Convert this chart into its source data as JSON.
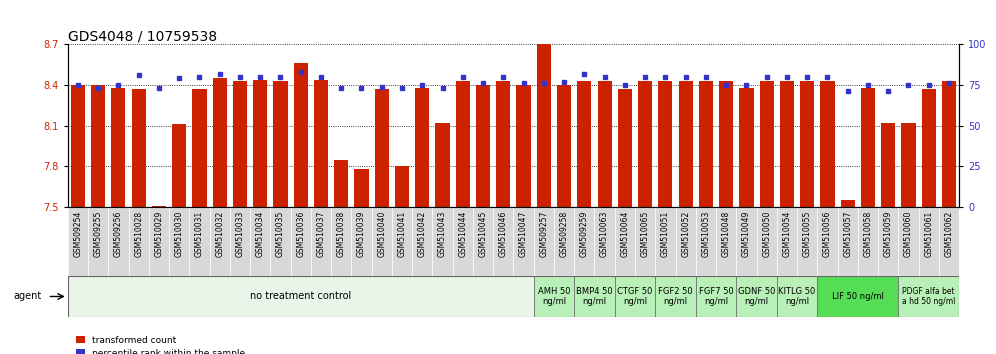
{
  "title": "GDS4048 / 10759538",
  "samples": [
    "GSM509254",
    "GSM509255",
    "GSM509256",
    "GSM510028",
    "GSM510029",
    "GSM510030",
    "GSM510031",
    "GSM510032",
    "GSM510033",
    "GSM510034",
    "GSM510035",
    "GSM510036",
    "GSM510037",
    "GSM510038",
    "GSM510039",
    "GSM510040",
    "GSM510041",
    "GSM510042",
    "GSM510043",
    "GSM510044",
    "GSM510045",
    "GSM510046",
    "GSM510047",
    "GSM509257",
    "GSM509258",
    "GSM509259",
    "GSM510063",
    "GSM510064",
    "GSM510065",
    "GSM510051",
    "GSM510052",
    "GSM510053",
    "GSM510048",
    "GSM510049",
    "GSM510050",
    "GSM510054",
    "GSM510055",
    "GSM510056",
    "GSM510057",
    "GSM510058",
    "GSM510059",
    "GSM510060",
    "GSM510061",
    "GSM510062"
  ],
  "bar_values": [
    8.4,
    8.4,
    8.38,
    8.37,
    7.51,
    8.11,
    8.37,
    8.45,
    8.43,
    8.44,
    8.43,
    8.56,
    8.44,
    7.85,
    7.78,
    8.37,
    7.8,
    8.38,
    8.12,
    8.43,
    8.4,
    8.43,
    8.4,
    8.7,
    8.4,
    8.43,
    8.43,
    8.37,
    8.43,
    8.43,
    8.43,
    8.43,
    8.43,
    8.38,
    8.43,
    8.43,
    8.43,
    8.43,
    7.55,
    8.38,
    8.12,
    8.12,
    8.37,
    8.43
  ],
  "percentile_values": [
    75,
    73,
    75,
    81,
    73,
    79,
    80,
    82,
    80,
    80,
    80,
    83,
    80,
    73,
    73,
    74,
    73,
    75,
    73,
    80,
    76,
    80,
    76,
    76,
    77,
    82,
    80,
    75,
    80,
    80,
    80,
    80,
    75,
    75,
    80,
    80,
    80,
    80,
    71,
    75,
    71,
    75,
    75,
    76
  ],
  "ylim_left": [
    7.5,
    8.7
  ],
  "ylim_right": [
    0,
    100
  ],
  "yticks_left": [
    7.5,
    7.8,
    8.1,
    8.4,
    8.7
  ],
  "yticks_right": [
    0,
    25,
    50,
    75,
    100
  ],
  "bar_color": "#cc2200",
  "dot_color": "#3333cc",
  "bar_width": 0.7,
  "groups": [
    {
      "label": "no treatment control",
      "start": 0,
      "end": 23,
      "color": "#e8f5e8",
      "text_size": 7
    },
    {
      "label": "AMH 50\nng/ml",
      "start": 23,
      "end": 25,
      "color": "#b8f0b8",
      "text_size": 6
    },
    {
      "label": "BMP4 50\nng/ml",
      "start": 25,
      "end": 27,
      "color": "#b8f0b8",
      "text_size": 6
    },
    {
      "label": "CTGF 50\nng/ml",
      "start": 27,
      "end": 29,
      "color": "#b8f0b8",
      "text_size": 6
    },
    {
      "label": "FGF2 50\nng/ml",
      "start": 29,
      "end": 31,
      "color": "#b8f0b8",
      "text_size": 6
    },
    {
      "label": "FGF7 50\nng/ml",
      "start": 31,
      "end": 33,
      "color": "#b8f0b8",
      "text_size": 6
    },
    {
      "label": "GDNF 50\nng/ml",
      "start": 33,
      "end": 35,
      "color": "#b8f0b8",
      "text_size": 6
    },
    {
      "label": "KITLG 50\nng/ml",
      "start": 35,
      "end": 37,
      "color": "#b8f0b8",
      "text_size": 6
    },
    {
      "label": "LIF 50 ng/ml",
      "start": 37,
      "end": 41,
      "color": "#55dd55",
      "text_size": 6
    },
    {
      "label": "PDGF alfa bet\na hd 50 ng/ml",
      "start": 41,
      "end": 44,
      "color": "#b8f0b8",
      "text_size": 5.5
    }
  ],
  "agent_label": "agent",
  "legend_bar_label": "transformed count",
  "legend_dot_label": "percentile rank within the sample",
  "title_fontsize": 10,
  "tick_fontsize": 5.5,
  "axis_label_color_left": "#cc2200",
  "axis_label_color_right": "#3333cc",
  "xtick_bg_color": "#d8d8d8"
}
